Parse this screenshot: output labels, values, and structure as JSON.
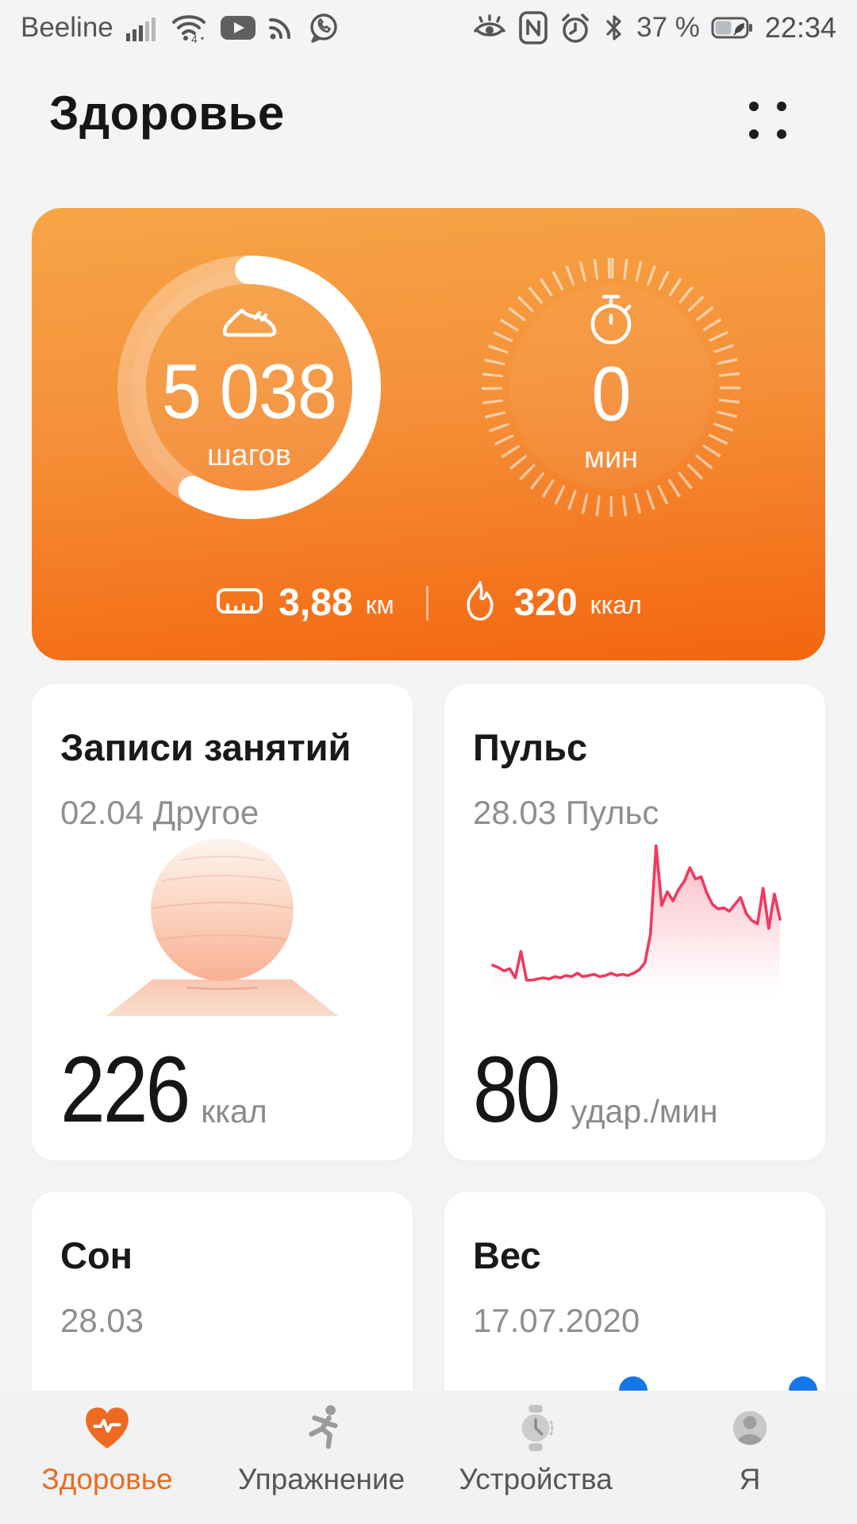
{
  "status_bar": {
    "carrier": "Beeline",
    "battery": "37 %",
    "time": "22:34",
    "left_icons": [
      "signal-bars",
      "wifi",
      "youtube",
      "rss",
      "whatsapp"
    ],
    "right_icons": [
      "eye-comfort",
      "nfc",
      "alarm",
      "bluetooth",
      "battery-saver"
    ]
  },
  "header": {
    "title": "Здоровье",
    "menu_icon": "four-dots-menu"
  },
  "summary_card": {
    "steps": {
      "value": "5 038",
      "unit": "шагов",
      "progress": 0.58,
      "icon": "shoe"
    },
    "active_minutes": {
      "value": "0",
      "unit": "мин",
      "icon": "stopwatch"
    },
    "distance": {
      "value": "3,88",
      "unit": "км",
      "icon": "ruler"
    },
    "calories": {
      "value": "320",
      "unit": "ккал",
      "icon": "flame"
    }
  },
  "cards": {
    "activity": {
      "title": "Записи занятий",
      "subtitle": "02.04 Другое",
      "value": "226",
      "unit": "ккал",
      "illustration": "gym-ball"
    },
    "heart_rate": {
      "title": "Пульс",
      "subtitle": "28.03 Пульс",
      "value": "80",
      "unit": "удар./мин"
    },
    "sleep": {
      "title": "Сон",
      "subtitle": "28.03"
    },
    "weight": {
      "title": "Вес",
      "subtitle": "17.07.2020"
    }
  },
  "chart_data": {
    "type": "line",
    "title": "Пульс 28.03",
    "ylabel": "удар./мин",
    "xlabel": "",
    "ylim": [
      50,
      180
    ],
    "grid": false,
    "legend": "none",
    "line_color": "#EF3A5F",
    "fill": "pink gradient fading down",
    "values": [
      68,
      66,
      63,
      65,
      57,
      80,
      55,
      55,
      56,
      57,
      56,
      58,
      57,
      59,
      58,
      61,
      58,
      59,
      60,
      58,
      59,
      61,
      59,
      60,
      59,
      61,
      64,
      70,
      95,
      172,
      120,
      132,
      124,
      134,
      141,
      153,
      143,
      145,
      131,
      121,
      117,
      118,
      115,
      121,
      127,
      113,
      107,
      104,
      135,
      100,
      130,
      108
    ]
  },
  "nav": {
    "items": [
      {
        "label": "Здоровье",
        "icon": "heart-pulse",
        "active": true
      },
      {
        "label": "Упражнение",
        "icon": "runner",
        "active": false
      },
      {
        "label": "Устройства",
        "icon": "smartwatch",
        "active": false
      },
      {
        "label": "Я",
        "icon": "profile",
        "active": false
      }
    ]
  },
  "colors": {
    "accent_orange": "#ED6A1F",
    "card_gradient_top": "#F7A546",
    "card_gradient_bottom": "#F3650F",
    "heart_line": "#EF3A5F",
    "blue_dot": "#1677E8",
    "page_bg": "#f3f4f6"
  }
}
